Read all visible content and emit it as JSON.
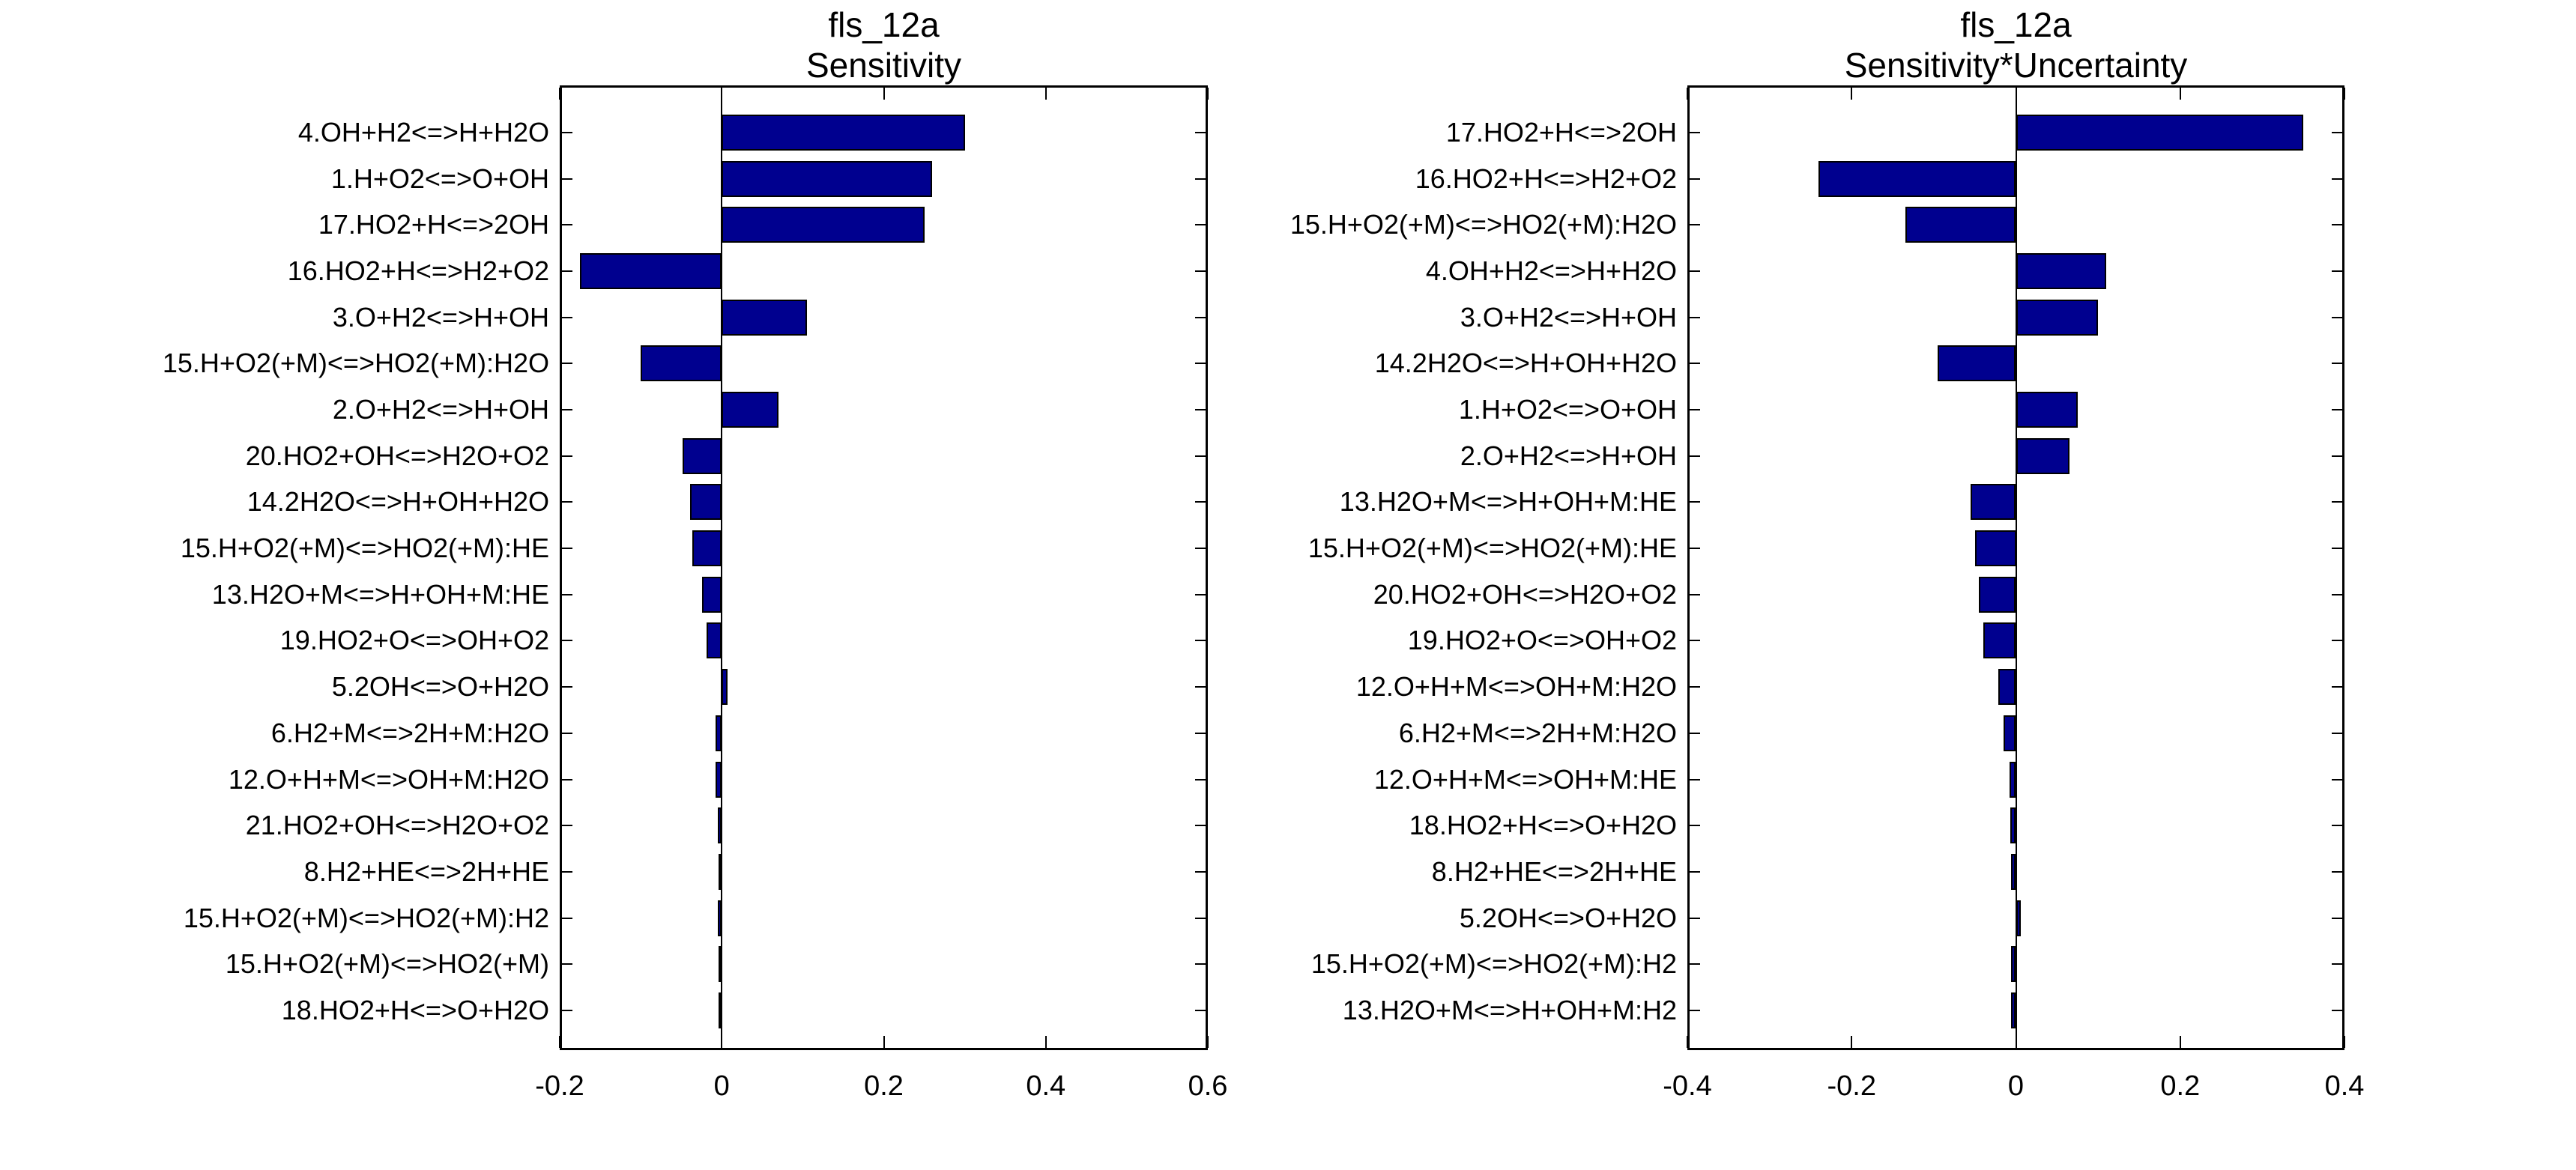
{
  "figure": {
    "background": "#ffffff",
    "bar_fill": "#00008f",
    "bar_edge": "#000000",
    "axis_color": "#000000"
  },
  "chart_data": [
    {
      "type": "bar",
      "orientation": "horizontal",
      "title": "fls_12a",
      "subtitle": "Sensitivity",
      "xlabel": "",
      "ylabel": "",
      "xlim": [
        -0.2,
        0.6
      ],
      "xticks": [
        -0.2,
        0,
        0.2,
        0.4,
        0.6
      ],
      "xtick_labels": [
        "-0.2",
        "0",
        "0.2",
        "0.4",
        "0.6"
      ],
      "grid": false,
      "legend": "none",
      "categories": [
        "4.OH+H2<=>H+H2O",
        "1.H+O2<=>O+OH",
        "17.HO2+H<=>2OH",
        "16.HO2+H<=>H2+O2",
        "3.O+H2<=>H+OH",
        "15.H+O2(+M)<=>HO2(+M):H2O",
        "2.O+H2<=>H+OH",
        "20.HO2+OH<=>H2O+O2",
        "14.2H2O<=>H+OH+H2O",
        "15.H+O2(+M)<=>HO2(+M):HE",
        "13.H2O+M<=>H+OH+M:HE",
        "19.HO2+O<=>OH+O2",
        "5.2OH<=>O+H2O",
        "6.H2+M<=>2H+M:H2O",
        "12.O+H+M<=>OH+M:H2O",
        "21.HO2+OH<=>H2O+O2",
        "8.H2+HE<=>2H+HE",
        "15.H+O2(+M)<=>HO2(+M):H2",
        "15.H+O2(+M)<=>HO2(+M)",
        "18.HO2+H<=>O+H2O"
      ],
      "values": [
        0.3,
        0.26,
        0.25,
        -0.175,
        0.105,
        -0.1,
        0.07,
        -0.048,
        -0.039,
        -0.036,
        -0.024,
        -0.019,
        0.007,
        -0.008,
        -0.008,
        -0.005,
        -0.004,
        -0.005,
        -0.004,
        -0.003
      ]
    },
    {
      "type": "bar",
      "orientation": "horizontal",
      "title": "fls_12a",
      "subtitle": "Sensitivity*Uncertainty",
      "xlabel": "",
      "ylabel": "",
      "xlim": [
        -0.4,
        0.4
      ],
      "xticks": [
        -0.4,
        -0.2,
        0,
        0.2,
        0.4
      ],
      "xtick_labels": [
        "-0.4",
        "-0.2",
        "0",
        "0.2",
        "0.4"
      ],
      "grid": false,
      "legend": "none",
      "categories": [
        "17.HO2+H<=>2OH",
        "16.HO2+H<=>H2+O2",
        "15.H+O2(+M)<=>HO2(+M):H2O",
        "4.OH+H2<=>H+H2O",
        "3.O+H2<=>H+OH",
        "14.2H2O<=>H+OH+H2O",
        "1.H+O2<=>O+OH",
        "2.O+H2<=>H+OH",
        "13.H2O+M<=>H+OH+M:HE",
        "15.H+O2(+M)<=>HO2(+M):HE",
        "20.HO2+OH<=>H2O+O2",
        "19.HO2+O<=>OH+O2",
        "12.O+H+M<=>OH+M:H2O",
        "6.H2+M<=>2H+M:H2O",
        "12.O+H+M<=>OH+M:HE",
        "18.HO2+H<=>O+H2O",
        "8.H2+HE<=>2H+HE",
        "5.2OH<=>O+H2O",
        "15.H+O2(+M)<=>HO2(+M):H2",
        "13.H2O+M<=>H+OH+M:H2"
      ],
      "values": [
        0.35,
        -0.24,
        -0.135,
        0.11,
        0.1,
        -0.095,
        0.075,
        0.065,
        -0.055,
        -0.05,
        -0.045,
        -0.04,
        -0.021,
        -0.015,
        -0.008,
        -0.007,
        -0.006,
        0.006,
        -0.0055,
        -0.0055
      ]
    }
  ]
}
